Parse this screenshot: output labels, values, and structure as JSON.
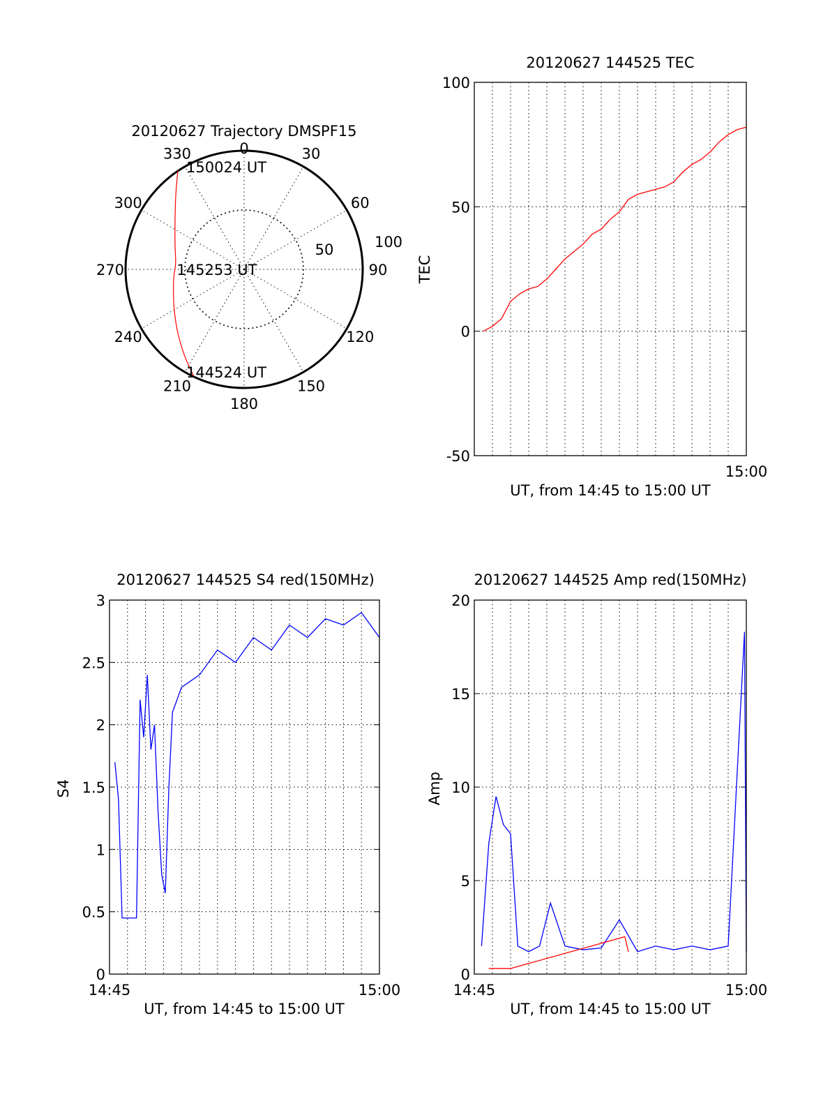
{
  "colors": {
    "red": "#ff0000",
    "blue": "#0000ff",
    "axis": "#000000"
  },
  "chart_data": [
    {
      "type": "polar",
      "title": "20120627 Trajectory DMSPF15",
      "angle_ticks": [
        "0",
        "30",
        "60",
        "90",
        "120",
        "150",
        "180",
        "210",
        "240",
        "270",
        "300",
        "330"
      ],
      "radial_ticks": [
        "50",
        "100"
      ],
      "radial_max": 100,
      "grid": true,
      "trajectory": {
        "color": "red",
        "points": [
          [
            205,
            100
          ],
          [
            215,
            88
          ],
          [
            228,
            76
          ],
          [
            244,
            66
          ],
          [
            262,
            60
          ],
          [
            275,
            58
          ],
          [
            290,
            62
          ],
          [
            306,
            72
          ],
          [
            318,
            86
          ],
          [
            326,
            100
          ]
        ]
      },
      "annotations": [
        {
          "text": "150024 UT",
          "az": 330,
          "zen": 100
        },
        {
          "text": "145253 UT",
          "az": 270,
          "zen": 58
        },
        {
          "text": "144524 UT",
          "az": 210,
          "zen": 100
        }
      ]
    },
    {
      "type": "line",
      "title": "20120627 144525 TEC",
      "ylabel": "TEC",
      "xlabel": "UT, from 14:45 to 15:00 UT",
      "xlim": [
        0,
        15
      ],
      "ylim": [
        -50,
        100
      ],
      "y_ticks": [
        "-50",
        "0",
        "50",
        "100"
      ],
      "x_tick_labels": [
        {
          "at": 15,
          "label": "15:00"
        }
      ],
      "grid": true,
      "series": [
        {
          "color": "red",
          "x": [
            0.5,
            1.0,
            1.5,
            2.0,
            2.5,
            3.0,
            3.5,
            4.0,
            4.5,
            5.0,
            5.5,
            6.0,
            6.5,
            7.0,
            7.5,
            8.0,
            8.5,
            9.0,
            9.5,
            10.0,
            10.5,
            11.0,
            11.5,
            12.0,
            12.5,
            13.0,
            13.5,
            14.0,
            14.5,
            15.0
          ],
          "y": [
            0,
            2,
            5,
            12,
            15,
            17,
            18,
            21,
            25,
            29,
            32,
            35,
            39,
            41,
            45,
            48,
            53,
            55,
            56,
            57,
            58,
            60,
            64,
            67,
            69,
            72,
            76,
            79,
            81,
            82
          ]
        }
      ]
    },
    {
      "type": "line",
      "title": "20120627 144525 S4 red(150MHz)",
      "ylabel": "S4",
      "xlabel": "UT, from 14:45 to 15:00 UT",
      "xlim": [
        0,
        15
      ],
      "ylim": [
        0,
        3
      ],
      "y_ticks": [
        "0",
        "0.5",
        "1",
        "1.5",
        "2",
        "2.5",
        "3"
      ],
      "x_tick_labels": [
        {
          "at": 0,
          "label": "14:45"
        },
        {
          "at": 15,
          "label": "15:00"
        }
      ],
      "grid": true,
      "series": [
        {
          "color": "blue",
          "x": [
            0.3,
            0.5,
            0.7,
            0.9,
            1.1,
            1.3,
            1.5,
            1.7,
            1.9,
            2.1,
            2.3,
            2.5,
            2.7,
            2.9,
            3.1,
            3.3,
            3.5,
            4.0,
            5.0,
            6.0,
            7.0,
            8.0,
            9.0,
            10.0,
            11.0,
            12.0,
            13.0,
            14.0,
            15.0
          ],
          "y": [
            1.7,
            1.4,
            0.45,
            0.45,
            0.45,
            0.45,
            0.45,
            2.2,
            1.9,
            2.4,
            1.8,
            2.0,
            1.3,
            0.8,
            0.65,
            1.5,
            2.1,
            2.3,
            2.4,
            2.6,
            2.5,
            2.7,
            2.6,
            2.8,
            2.7,
            2.85,
            2.8,
            2.9,
            2.7
          ]
        },
        {
          "color": "red",
          "x": [],
          "y": []
        }
      ]
    },
    {
      "type": "line",
      "title": "20120627 144525 Amp red(150MHz)",
      "ylabel": "Amp",
      "xlabel": "UT, from 14:45 to 15:00 UT",
      "xlim": [
        0,
        15
      ],
      "ylim": [
        0,
        20
      ],
      "y_ticks": [
        "0",
        "5",
        "10",
        "15",
        "20"
      ],
      "x_tick_labels": [
        {
          "at": 0,
          "label": "14:45"
        },
        {
          "at": 15,
          "label": "15:00"
        }
      ],
      "grid": true,
      "series": [
        {
          "color": "blue",
          "x": [
            0.4,
            0.8,
            1.2,
            1.6,
            2.0,
            2.4,
            3.0,
            3.6,
            4.2,
            5.0,
            6.0,
            7.0,
            8.0,
            9.0,
            10.0,
            11.0,
            12.0,
            13.0,
            14.0,
            14.9,
            15.0
          ],
          "y": [
            1.5,
            7.0,
            9.5,
            8.0,
            7.5,
            1.5,
            1.2,
            1.5,
            3.8,
            1.5,
            1.3,
            1.4,
            2.9,
            1.2,
            1.5,
            1.3,
            1.5,
            1.3,
            1.5,
            18.3,
            1.2
          ]
        },
        {
          "color": "red",
          "x": [
            0.8,
            1.2,
            1.6,
            2.0,
            8.3,
            8.5
          ],
          "y": [
            0.3,
            0.3,
            0.3,
            0.3,
            2.0,
            1.2
          ]
        }
      ]
    }
  ]
}
